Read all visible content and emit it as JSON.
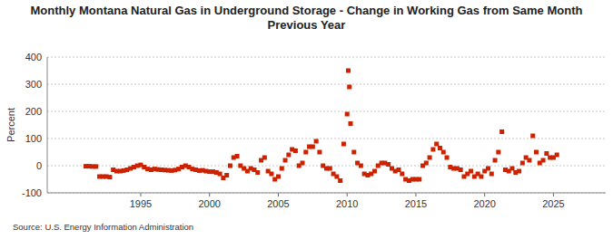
{
  "chart_data": {
    "type": "scatter",
    "title": "Monthly Montana Natural Gas in Underground Storage - Change in Working Gas from Same Month Previous Year",
    "y_label": "Percent",
    "annotations": [
      "Source: U.S. Energy Information Administration"
    ],
    "color": "#cc2200",
    "marker": "square",
    "grid": true,
    "xlim": [
      1988.2,
      2028.8
    ],
    "ylim": [
      -100,
      400
    ],
    "xticks": [
      1995,
      2000,
      2005,
      2010,
      2015,
      2020,
      2025
    ],
    "yticks": [
      -100,
      0,
      100,
      200,
      300,
      400
    ],
    "x": [
      1991.0,
      1991.25,
      1991.5,
      1991.75,
      1992.0,
      1992.25,
      1992.5,
      1992.75,
      1993.0,
      1993.25,
      1993.5,
      1993.75,
      1994.0,
      1994.25,
      1994.5,
      1994.75,
      1995.0,
      1995.25,
      1995.5,
      1995.75,
      1996.0,
      1996.25,
      1996.5,
      1996.75,
      1997.0,
      1997.25,
      1997.5,
      1997.75,
      1998.0,
      1998.25,
      1998.5,
      1998.75,
      1999.0,
      1999.25,
      1999.5,
      1999.75,
      2000.0,
      2000.25,
      2000.5,
      2000.75,
      2001.0,
      2001.25,
      2001.5,
      2001.75,
      2002.0,
      2002.25,
      2002.5,
      2002.75,
      2003.0,
      2003.25,
      2003.5,
      2003.75,
      2004.0,
      2004.25,
      2004.5,
      2004.75,
      2005.0,
      2005.25,
      2005.5,
      2005.75,
      2006.0,
      2006.25,
      2006.5,
      2006.75,
      2007.0,
      2007.25,
      2007.5,
      2007.75,
      2008.0,
      2008.25,
      2008.5,
      2008.75,
      2009.0,
      2009.25,
      2009.5,
      2009.75,
      2010.0,
      2010.083,
      2010.167,
      2010.25,
      2010.5,
      2010.75,
      2011.0,
      2011.25,
      2011.5,
      2011.75,
      2012.0,
      2012.25,
      2012.5,
      2012.75,
      2013.0,
      2013.25,
      2013.5,
      2013.75,
      2014.0,
      2014.25,
      2014.5,
      2014.75,
      2015.0,
      2015.25,
      2015.5,
      2015.75,
      2016.0,
      2016.25,
      2016.5,
      2016.75,
      2017.0,
      2017.25,
      2017.5,
      2017.75,
      2018.0,
      2018.25,
      2018.5,
      2018.75,
      2019.0,
      2019.25,
      2019.5,
      2019.75,
      2020.0,
      2020.25,
      2020.5,
      2020.75,
      2021.0,
      2021.25,
      2021.5,
      2021.75,
      2022.0,
      2022.25,
      2022.5,
      2022.75,
      2023.0,
      2023.25,
      2023.5,
      2023.75,
      2024.0,
      2024.25,
      2024.5,
      2024.75,
      2025.0,
      2025.25
    ],
    "values": [
      -2,
      -2,
      -3,
      -3,
      -40,
      -40,
      -40,
      -42,
      -15,
      -20,
      -20,
      -18,
      -15,
      -10,
      -5,
      0,
      3,
      -5,
      -12,
      -15,
      -12,
      -14,
      -15,
      -16,
      -17,
      -18,
      -16,
      -12,
      -5,
      0,
      -5,
      -12,
      -15,
      -18,
      -17,
      -20,
      -22,
      -22,
      -25,
      -30,
      -45,
      -35,
      0,
      30,
      35,
      0,
      -10,
      -20,
      -10,
      -15,
      -25,
      20,
      30,
      -20,
      -30,
      -50,
      -40,
      -10,
      20,
      40,
      60,
      55,
      0,
      10,
      50,
      70,
      70,
      90,
      50,
      0,
      -10,
      -10,
      -30,
      -40,
      -55,
      80,
      190,
      350,
      290,
      155,
      50,
      10,
      0,
      -30,
      -35,
      -30,
      -20,
      0,
      10,
      10,
      5,
      -10,
      -20,
      -15,
      -30,
      -50,
      -55,
      -50,
      -50,
      -50,
      0,
      10,
      30,
      60,
      80,
      65,
      50,
      30,
      -5,
      -10,
      -10,
      -15,
      -40,
      -30,
      -20,
      -40,
      -30,
      -40,
      -20,
      -10,
      -30,
      20,
      50,
      125,
      -15,
      -20,
      -10,
      -25,
      -20,
      10,
      30,
      20,
      110,
      50,
      10,
      20,
      45,
      30,
      30,
      40
    ]
  }
}
